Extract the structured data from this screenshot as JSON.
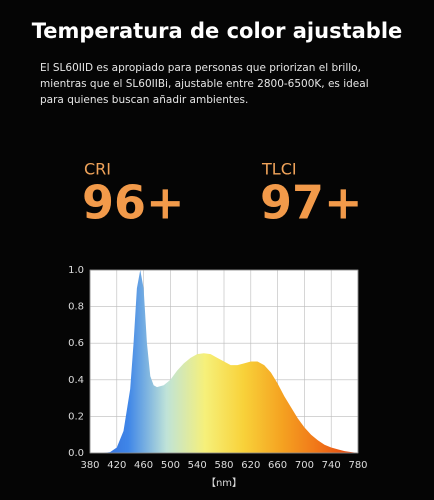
{
  "header": {
    "title": "Temperatura de color ajustable"
  },
  "paragraph": {
    "lines": [
      "El SL60IID es apropiado para personas que priorizan el brillo,",
      "mientras que el SL60IIBi, ajustable entre 2800-6500K, es ideal",
      "para quienes buscan añadir ambientes."
    ]
  },
  "stats": [
    {
      "label": "CRI",
      "value": "96+"
    },
    {
      "label": "TLCI",
      "value": "97+"
    }
  ],
  "chart_data": {
    "type": "area",
    "x": [
      380,
      400,
      410,
      420,
      430,
      440,
      445,
      450,
      455,
      460,
      465,
      470,
      475,
      480,
      490,
      500,
      510,
      520,
      530,
      540,
      550,
      560,
      570,
      580,
      590,
      600,
      610,
      620,
      630,
      640,
      650,
      660,
      670,
      680,
      690,
      700,
      710,
      720,
      730,
      740,
      750,
      760,
      770,
      780
    ],
    "values": [
      0,
      0,
      0.005,
      0.03,
      0.12,
      0.35,
      0.6,
      0.9,
      1.0,
      0.9,
      0.6,
      0.42,
      0.37,
      0.36,
      0.37,
      0.4,
      0.45,
      0.49,
      0.52,
      0.54,
      0.545,
      0.54,
      0.52,
      0.5,
      0.48,
      0.48,
      0.49,
      0.5,
      0.5,
      0.48,
      0.44,
      0.38,
      0.31,
      0.25,
      0.19,
      0.14,
      0.1,
      0.07,
      0.045,
      0.03,
      0.02,
      0.01,
      0.005,
      0
    ],
    "xlabel": "【nm】",
    "xlim": [
      380,
      780
    ],
    "ylim": [
      0,
      1
    ],
    "xticks": [
      380,
      420,
      460,
      500,
      540,
      580,
      620,
      660,
      700,
      740,
      780
    ],
    "yticks": [
      {
        "value": 0,
        "label": "0.0"
      },
      {
        "value": 0.2,
        "label": "0.2"
      },
      {
        "value": 0.4,
        "label": "0.4"
      },
      {
        "value": 0.6,
        "label": "0.6"
      },
      {
        "value": 0.8,
        "label": "0.8"
      },
      {
        "value": 1,
        "label": "1.0"
      }
    ],
    "grid": true,
    "gradient": [
      "#2f63d6",
      "#3f86e8",
      "#bfe3d8",
      "#f6f07a",
      "#f8d23a",
      "#f5a321",
      "#f07318",
      "#e0400f"
    ]
  }
}
